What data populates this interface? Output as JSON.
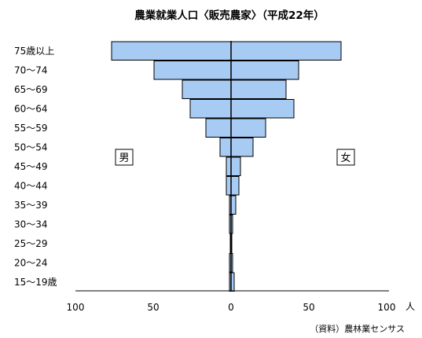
{
  "chart_data": {
    "type": "bar",
    "subtype": "population-pyramid",
    "title": "農業就業人口〈販売農家〉（平成22年）",
    "source": "（資料）農林業センサス",
    "unit": "人",
    "categories": [
      "75歳以上",
      "70～74",
      "65～69",
      "60～64",
      "55～59",
      "50～54",
      "45～49",
      "40～44",
      "35～39",
      "30～34",
      "25～29",
      "20～24",
      "15～19歳"
    ],
    "series": [
      {
        "name": "男",
        "side": "left",
        "values": [
          76,
          49,
          31,
          26,
          16,
          7,
          3,
          3,
          1,
          1,
          0.5,
          1,
          1
        ]
      },
      {
        "name": "女",
        "side": "right",
        "values": [
          70,
          43,
          35,
          40,
          22,
          14,
          6,
          5,
          3,
          1,
          0.5,
          1,
          2
        ]
      }
    ],
    "xticks": [
      "100",
      "50",
      "0",
      "50",
      "100"
    ],
    "xlim": [
      -100,
      100
    ],
    "bar_color": "#a7cbf3",
    "grid": false
  }
}
